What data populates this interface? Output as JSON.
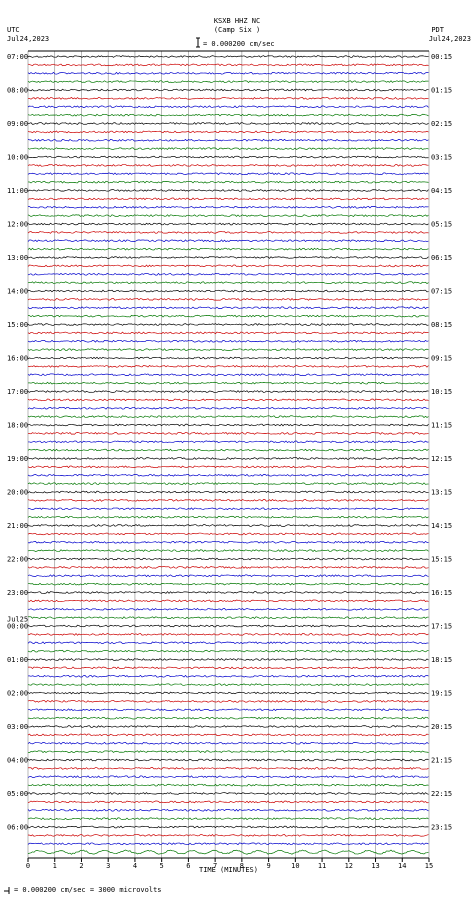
{
  "header": {
    "station": "KSXB HHZ NC",
    "location": "(Camp Six )",
    "scale_text": "= 0.000200 cm/sec",
    "left_tz": "UTC",
    "left_date": "Jul24,2023",
    "right_tz": "PDT",
    "right_date": "Jul24,2023"
  },
  "footer": {
    "scale_note": "= 0.000200 cm/sec =    3000 microvolts"
  },
  "chart_data": {
    "type": "line",
    "title": "KSXB HHZ NC (Camp Six )",
    "xlabel": "TIME (MINUTES)",
    "x_ticks": [
      "0",
      "1",
      "2",
      "3",
      "4",
      "5",
      "6",
      "7",
      "8",
      "9",
      "10",
      "11",
      "12",
      "13",
      "14",
      "15"
    ],
    "xlim": [
      0,
      15
    ],
    "trace_colors": [
      "#000000",
      "#cc0000",
      "#0000cc",
      "#007700"
    ],
    "traces_per_hour": 4,
    "hours": 24,
    "left_labels": [
      "07:00",
      "08:00",
      "09:00",
      "10:00",
      "11:00",
      "12:00",
      "13:00",
      "14:00",
      "15:00",
      "16:00",
      "17:00",
      "18:00",
      "19:00",
      "20:00",
      "21:00",
      "22:00",
      "23:00",
      "00:00",
      "01:00",
      "02:00",
      "03:00",
      "04:00",
      "05:00",
      "06:00"
    ],
    "left_date_marker": "Jul25",
    "right_labels": [
      "00:15",
      "01:15",
      "02:15",
      "03:15",
      "04:15",
      "05:15",
      "06:15",
      "07:15",
      "08:15",
      "09:15",
      "10:15",
      "11:15",
      "12:15",
      "13:15",
      "14:15",
      "15:15",
      "16:15",
      "17:15",
      "18:15",
      "19:15",
      "20:15",
      "21:15",
      "22:15",
      "23:15"
    ]
  }
}
